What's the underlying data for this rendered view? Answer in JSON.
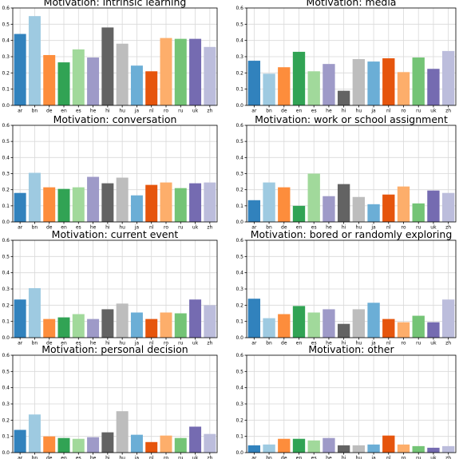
{
  "palette": {
    "ar": "#3182bd",
    "bn": "#9ecae1",
    "de": "#fd8d3c",
    "en": "#31a354",
    "es": "#a1d99b",
    "he": "#9e9ac8",
    "hi": "#636363",
    "hu": "#bdbdbd",
    "ja": "#6baed6",
    "nl": "#e6550d",
    "ro": "#fdae6b",
    "ru": "#74c476",
    "uk": "#756bb1",
    "zh": "#bcbddc"
  },
  "chart_data": [
    {
      "type": "bar",
      "title": "Motivation: intrinsic learning",
      "categories": [
        "ar",
        "bn",
        "de",
        "en",
        "es",
        "he",
        "hi",
        "hu",
        "ja",
        "nl",
        "ro",
        "ru",
        "uk",
        "zh"
      ],
      "values": [
        0.44,
        0.55,
        0.31,
        0.265,
        0.345,
        0.295,
        0.48,
        0.38,
        0.245,
        0.21,
        0.415,
        0.41,
        0.41,
        0.36
      ],
      "ylim": [
        0,
        0.6
      ],
      "yticks": [
        "0.0",
        "0.1",
        "0.2",
        "0.3",
        "0.4",
        "0.5",
        "0.6"
      ],
      "grid": true
    },
    {
      "type": "bar",
      "title": "Motivation: media",
      "categories": [
        "ar",
        "bn",
        "de",
        "en",
        "es",
        "he",
        "hi",
        "hu",
        "ja",
        "nl",
        "ro",
        "ru",
        "uk",
        "zh"
      ],
      "values": [
        0.275,
        0.195,
        0.235,
        0.33,
        0.21,
        0.255,
        0.09,
        0.285,
        0.27,
        0.29,
        0.205,
        0.295,
        0.225,
        0.335
      ],
      "ylim": [
        0,
        0.6
      ],
      "yticks": [
        "0.0",
        "0.1",
        "0.2",
        "0.3",
        "0.4",
        "0.5",
        "0.6"
      ],
      "grid": true
    },
    {
      "type": "bar",
      "title": "Motivation: conversation",
      "categories": [
        "ar",
        "bn",
        "de",
        "en",
        "es",
        "he",
        "hi",
        "hu",
        "ja",
        "nl",
        "ro",
        "ru",
        "uk",
        "zh"
      ],
      "values": [
        0.18,
        0.305,
        0.215,
        0.205,
        0.215,
        0.28,
        0.24,
        0.275,
        0.165,
        0.23,
        0.245,
        0.21,
        0.24,
        0.245
      ],
      "ylim": [
        0,
        0.6
      ],
      "yticks": [
        "0.0",
        "0.1",
        "0.2",
        "0.3",
        "0.4",
        "0.5",
        "0.6"
      ],
      "grid": true
    },
    {
      "type": "bar",
      "title": "Motivation: work or school assignment",
      "categories": [
        "ar",
        "bn",
        "de",
        "en",
        "es",
        "he",
        "hi",
        "hu",
        "ja",
        "nl",
        "ro",
        "ru",
        "uk",
        "zh"
      ],
      "values": [
        0.135,
        0.245,
        0.215,
        0.1,
        0.3,
        0.16,
        0.235,
        0.155,
        0.11,
        0.17,
        0.22,
        0.115,
        0.195,
        0.18
      ],
      "ylim": [
        0,
        0.6
      ],
      "yticks": [
        "0.0",
        "0.1",
        "0.2",
        "0.3",
        "0.4",
        "0.5",
        "0.6"
      ],
      "grid": true
    },
    {
      "type": "bar",
      "title": "Motivation: current event",
      "categories": [
        "ar",
        "bn",
        "de",
        "en",
        "es",
        "he",
        "hi",
        "hu",
        "ja",
        "nl",
        "ro",
        "ru",
        "uk",
        "zh"
      ],
      "values": [
        0.235,
        0.305,
        0.115,
        0.125,
        0.145,
        0.115,
        0.175,
        0.21,
        0.155,
        0.115,
        0.155,
        0.15,
        0.235,
        0.2
      ],
      "ylim": [
        0,
        0.6
      ],
      "yticks": [
        "0.0",
        "0.1",
        "0.2",
        "0.3",
        "0.4",
        "0.5",
        "0.6"
      ],
      "grid": true
    },
    {
      "type": "bar",
      "title": "Motivation: bored or randomly exploring",
      "categories": [
        "ar",
        "bn",
        "de",
        "en",
        "es",
        "he",
        "hi",
        "hu",
        "ja",
        "nl",
        "ro",
        "ru",
        "uk",
        "zh"
      ],
      "values": [
        0.24,
        0.12,
        0.145,
        0.195,
        0.155,
        0.175,
        0.085,
        0.175,
        0.215,
        0.115,
        0.095,
        0.135,
        0.095,
        0.235
      ],
      "ylim": [
        0,
        0.6
      ],
      "yticks": [
        "0.0",
        "0.1",
        "0.2",
        "0.3",
        "0.4",
        "0.5",
        "0.6"
      ],
      "grid": true
    },
    {
      "type": "bar",
      "title": "Motivation: personal decision",
      "categories": [
        "ar",
        "bn",
        "de",
        "en",
        "es",
        "he",
        "hi",
        "hu",
        "ja",
        "nl",
        "ro",
        "ru",
        "uk",
        "zh"
      ],
      "values": [
        0.14,
        0.235,
        0.1,
        0.09,
        0.085,
        0.095,
        0.125,
        0.255,
        0.11,
        0.065,
        0.105,
        0.09,
        0.16,
        0.115
      ],
      "ylim": [
        0,
        0.6
      ],
      "yticks": [
        "0.0",
        "0.1",
        "0.2",
        "0.3",
        "0.4",
        "0.5",
        "0.6"
      ],
      "grid": true
    },
    {
      "type": "bar",
      "title": "Motivation: other",
      "categories": [
        "ar",
        "bn",
        "de",
        "en",
        "es",
        "he",
        "hi",
        "hu",
        "ja",
        "nl",
        "ro",
        "ru",
        "uk",
        "zh"
      ],
      "values": [
        0.045,
        0.05,
        0.085,
        0.085,
        0.075,
        0.09,
        0.045,
        0.045,
        0.05,
        0.105,
        0.05,
        0.04,
        0.03,
        0.04
      ],
      "ylim": [
        0,
        0.6
      ],
      "yticks": [
        "0.0",
        "0.1",
        "0.2",
        "0.3",
        "0.4",
        "0.5",
        "0.6"
      ],
      "grid": true
    }
  ]
}
